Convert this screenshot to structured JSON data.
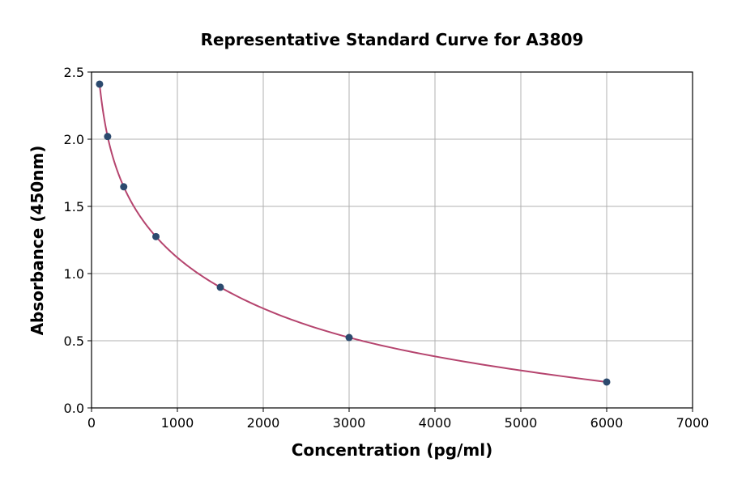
{
  "chart_data": {
    "type": "scatter",
    "title": "Representative Standard Curve for A3809",
    "xlabel": "Concentration (pg/ml)",
    "ylabel": "Absorbance (450nm)",
    "xlim": [
      0,
      7000
    ],
    "ylim": [
      0,
      2.5
    ],
    "xticks": [
      0,
      1000,
      2000,
      3000,
      4000,
      5000,
      6000,
      7000
    ],
    "yticks": [
      0.0,
      0.5,
      1.0,
      1.5,
      2.0,
      2.5
    ],
    "ytick_labels": [
      "0.0",
      "0.5",
      "1.0",
      "1.5",
      "2.0",
      "2.5"
    ],
    "grid": true,
    "series": [
      {
        "x": [
          93.75,
          187.5,
          375,
          750,
          1500,
          3000,
          6000
        ],
        "y": [
          2.41,
          2.02,
          1.646,
          1.275,
          0.898,
          0.524,
          0.193
        ],
        "marker_color": "#2c4a6e",
        "line_color": "#b5446e",
        "fit_curve": true
      }
    ]
  }
}
